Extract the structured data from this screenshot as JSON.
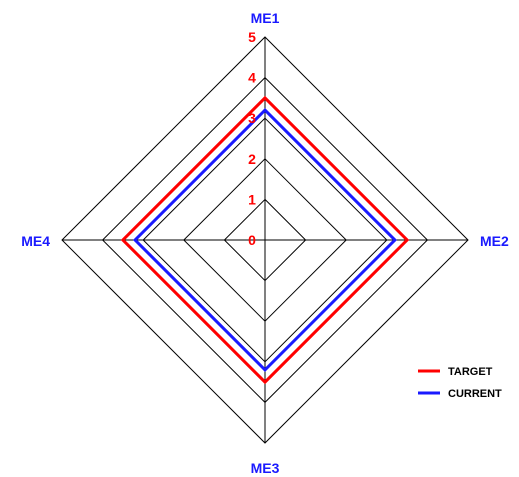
{
  "chart_data": {
    "type": "radar",
    "categories": [
      "ME1",
      "ME2",
      "ME3",
      "ME4"
    ],
    "rlim": [
      0,
      5
    ],
    "ticks": [
      "0",
      "1",
      "2",
      "3",
      "4",
      "5"
    ],
    "grid": true,
    "legend_position": "bottom-right",
    "series": [
      {
        "name": "TARGET",
        "values": [
          3.5,
          3.5,
          3.5,
          3.5
        ],
        "color": "#ff0000"
      },
      {
        "name": "CURRENT",
        "values": [
          3.2,
          3.2,
          3.2,
          3.2
        ],
        "color": "#1a1aff"
      }
    ],
    "colors": {
      "grid": "#000000",
      "axis_label": "#1a1aff",
      "tick_label": "#ff0000"
    }
  }
}
